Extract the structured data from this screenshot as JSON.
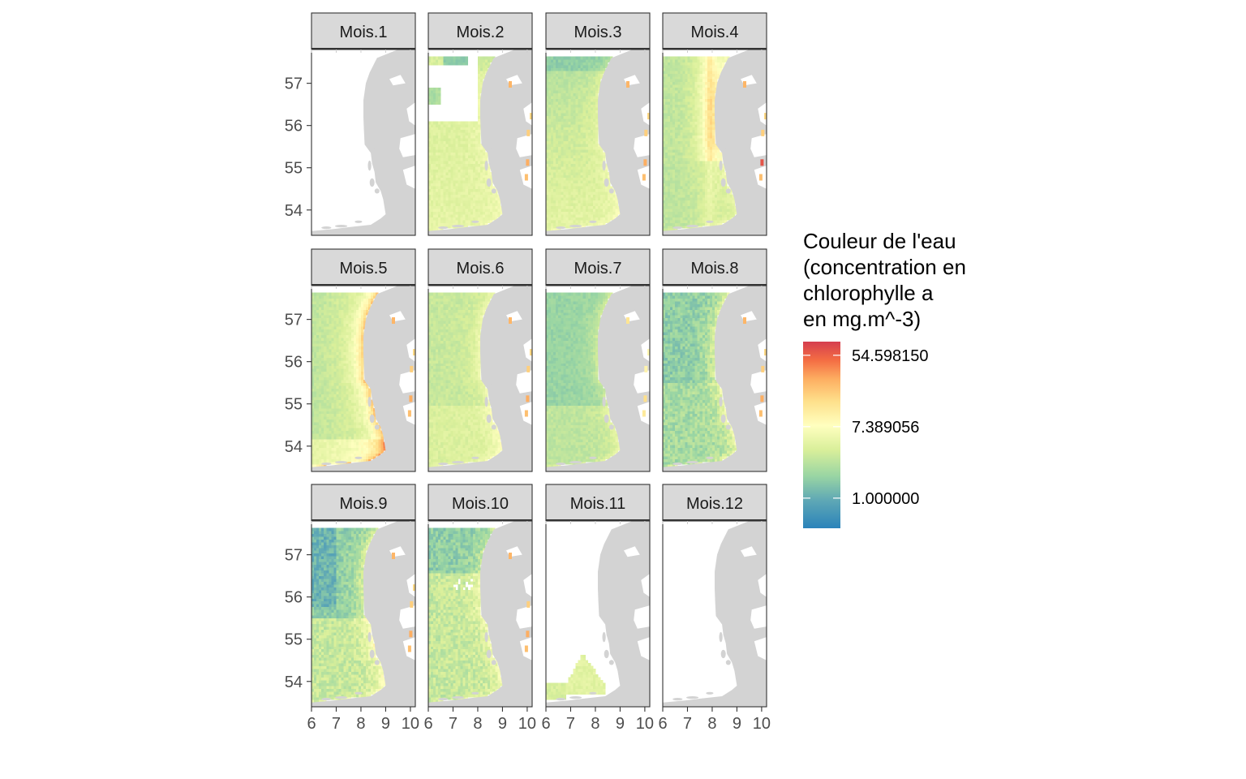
{
  "chart_data": {
    "type": "heatmap",
    "title": "",
    "xlabel": "",
    "ylabel": "",
    "xlim": [
      6,
      10.2
    ],
    "ylim": [
      53.4,
      57.8
    ],
    "x_ticks": [
      6,
      7,
      8,
      9,
      10
    ],
    "y_ticks": [
      54,
      55,
      56,
      57
    ],
    "x_tick_labels": [
      "6",
      "7",
      "8",
      "9",
      "10"
    ],
    "y_tick_labels": [
      "54",
      "55",
      "56",
      "57"
    ],
    "facets": [
      {
        "label": "Mois.1",
        "coverage": "none"
      },
      {
        "label": "Mois.2",
        "coverage": "partial"
      },
      {
        "label": "Mois.3",
        "coverage": "full"
      },
      {
        "label": "Mois.4",
        "coverage": "full"
      },
      {
        "label": "Mois.5",
        "coverage": "full"
      },
      {
        "label": "Mois.6",
        "coverage": "full"
      },
      {
        "label": "Mois.7",
        "coverage": "full"
      },
      {
        "label": "Mois.8",
        "coverage": "full"
      },
      {
        "label": "Mois.9",
        "coverage": "full"
      },
      {
        "label": "Mois.10",
        "coverage": "full"
      },
      {
        "label": "Mois.11",
        "coverage": "partial"
      },
      {
        "label": "Mois.12",
        "coverage": "none"
      }
    ],
    "legend": {
      "title": [
        "Couleur de l'eau",
        "(concentration en",
        "chlorophylle a",
        "en mg.m^-3)"
      ],
      "labels": [
        "54.598150",
        "7.389056",
        "1.000000"
      ],
      "values": [
        54.59815,
        7.389056,
        1.0
      ],
      "scale": "log",
      "palette": [
        "#2b83ba",
        "#abdda4",
        "#ffffbf",
        "#fdae61",
        "#d7191c"
      ],
      "placement": "right"
    },
    "colors": {
      "land": "#d3d3d3",
      "strip": "#d9d9d9",
      "panel_border": "#333333"
    }
  }
}
